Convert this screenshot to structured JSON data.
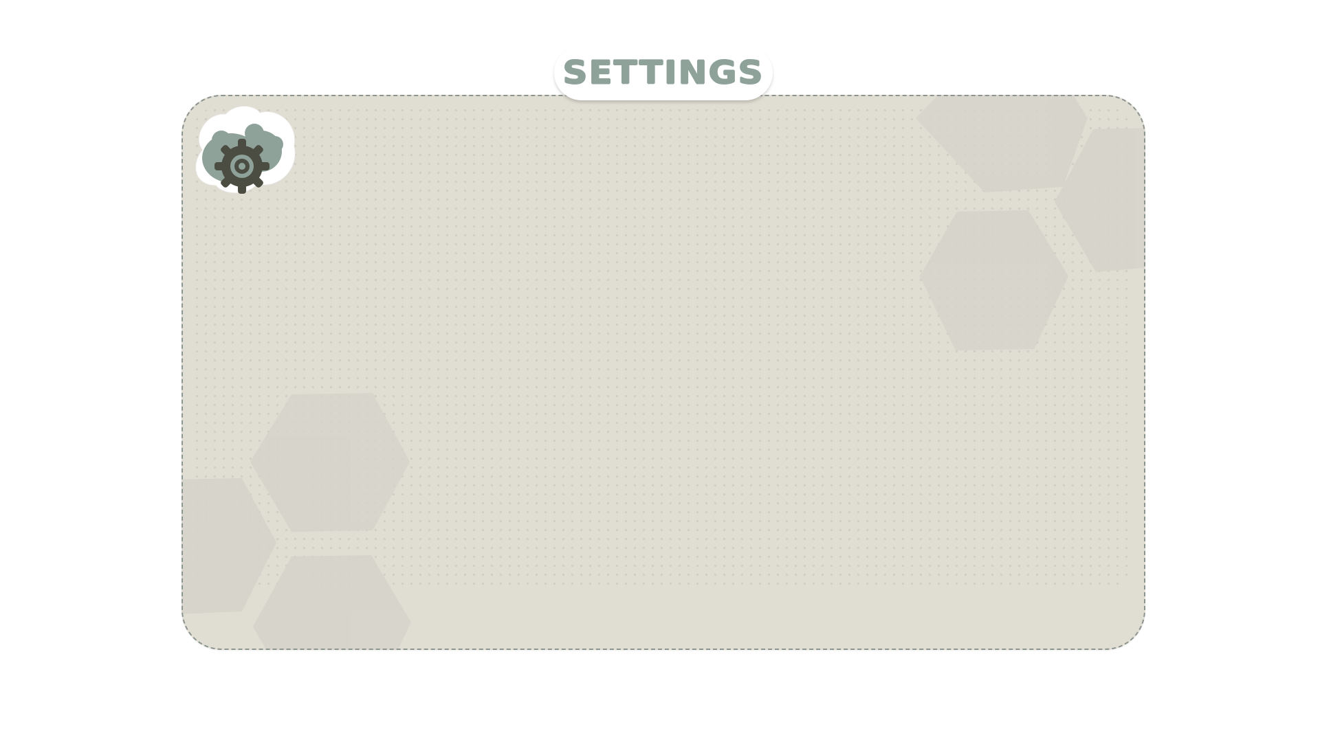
{
  "window": {
    "title": "SETTINGS"
  },
  "badge": {
    "icon": "gear-icon",
    "decor_icon": "cloud-blob-icon"
  },
  "colors": {
    "panel_background": "#e0ddd3",
    "panel_border": "#8b948e",
    "title_text": "#8fa29a",
    "hexagon_fill": "#d6d4cb",
    "badge_blob": "#8fa29a",
    "gear": "#4b4d42"
  }
}
